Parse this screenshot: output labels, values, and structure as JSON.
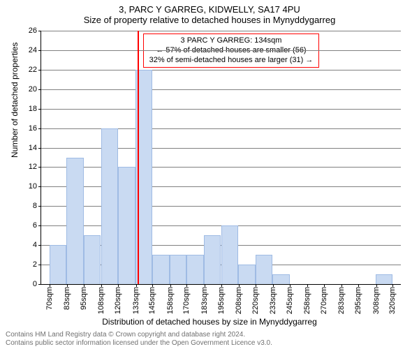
{
  "header": {
    "address": "3, PARC Y GARREG, KIDWELLY, SA17 4PU",
    "subtitle": "Size of property relative to detached houses in Mynyddygarreg"
  },
  "chart": {
    "type": "histogram",
    "background_color": "#ffffff",
    "grid_color": "#808080",
    "bar_fill": "#c9daf2",
    "bar_stroke": "#9fbbe4",
    "bar_stroke_width": 1,
    "ylabel": "Number of detached properties",
    "xlabel": "Distribution of detached houses by size in Mynyddygarreg",
    "label_fontsize": 12,
    "tick_fontsize": 11,
    "ylim": [
      0,
      26
    ],
    "ytick_step": 2,
    "yticks": [
      0,
      2,
      4,
      6,
      8,
      10,
      12,
      14,
      16,
      18,
      20,
      22,
      24,
      26
    ],
    "x_tick_labels": [
      "70sqm",
      "83sqm",
      "95sqm",
      "108sqm",
      "120sqm",
      "133sqm",
      "145sqm",
      "158sqm",
      "170sqm",
      "183sqm",
      "195sqm",
      "208sqm",
      "220sqm",
      "233sqm",
      "245sqm",
      "258sqm",
      "270sqm",
      "283sqm",
      "295sqm",
      "308sqm",
      "320sqm"
    ],
    "x_tick_positions": [
      70,
      83,
      95,
      108,
      120,
      133,
      145,
      158,
      170,
      183,
      195,
      208,
      220,
      233,
      245,
      258,
      270,
      283,
      295,
      308,
      320
    ],
    "xlim": [
      64,
      326
    ],
    "bars": [
      {
        "x0": 70,
        "x1": 82.5,
        "y": 4
      },
      {
        "x0": 82.5,
        "x1": 95,
        "y": 13
      },
      {
        "x0": 95,
        "x1": 107.5,
        "y": 5
      },
      {
        "x0": 107.5,
        "x1": 120,
        "y": 16
      },
      {
        "x0": 120,
        "x1": 132.5,
        "y": 12
      },
      {
        "x0": 132.5,
        "x1": 145,
        "y": 22
      },
      {
        "x0": 145,
        "x1": 157.5,
        "y": 3
      },
      {
        "x0": 157.5,
        "x1": 170,
        "y": 3
      },
      {
        "x0": 170,
        "x1": 182.5,
        "y": 3
      },
      {
        "x0": 182.5,
        "x1": 195,
        "y": 5
      },
      {
        "x0": 195,
        "x1": 207.5,
        "y": 6
      },
      {
        "x0": 207.5,
        "x1": 220,
        "y": 2
      },
      {
        "x0": 220,
        "x1": 232.5,
        "y": 3
      },
      {
        "x0": 232.5,
        "x1": 245,
        "y": 1
      },
      {
        "x0": 245,
        "x1": 257.5,
        "y": 0
      },
      {
        "x0": 257.5,
        "x1": 270,
        "y": 0
      },
      {
        "x0": 270,
        "x1": 282.5,
        "y": 0
      },
      {
        "x0": 282.5,
        "x1": 295,
        "y": 0
      },
      {
        "x0": 295,
        "x1": 307.5,
        "y": 0
      },
      {
        "x0": 307.5,
        "x1": 320,
        "y": 1
      }
    ],
    "marker": {
      "x": 134,
      "color": "#ff0000",
      "width": 2
    },
    "callout": {
      "border_color": "#ff0000",
      "text_color": "#000000",
      "lines": [
        "3 PARC Y GARREG: 134sqm",
        "← 57% of detached houses are smaller (56)",
        "32% of semi-detached houses are larger (31) →"
      ]
    }
  },
  "footer": {
    "line1": "Contains HM Land Registry data © Crown copyright and database right 2024.",
    "line2": "Contains public sector information licensed under the Open Government Licence v3.0."
  }
}
